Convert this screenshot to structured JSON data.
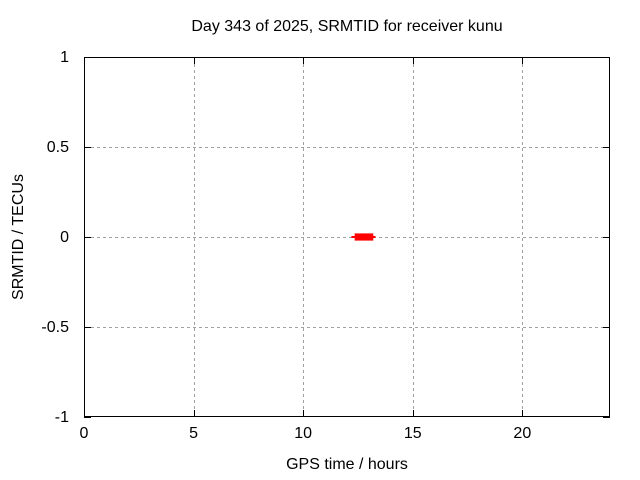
{
  "chart_data": {
    "type": "line",
    "title": "Day 343 of 2025, SRMTID for receiver kunu",
    "xlabel": "GPS time / hours",
    "ylabel": "SRMTID / TECUs",
    "xlim": [
      0,
      24
    ],
    "ylim": [
      -1,
      1
    ],
    "xticks": [
      {
        "value": 0,
        "label": "0"
      },
      {
        "value": 5,
        "label": "5"
      },
      {
        "value": 10,
        "label": "10"
      },
      {
        "value": 15,
        "label": "15"
      },
      {
        "value": 20,
        "label": "20"
      }
    ],
    "yticks": [
      {
        "value": 1,
        "label": "1"
      },
      {
        "value": 0.5,
        "label": "0.5"
      },
      {
        "value": 0,
        "label": "0"
      },
      {
        "value": -0.5,
        "label": "-0.5"
      },
      {
        "value": -1,
        "label": "-1"
      }
    ],
    "grid": true,
    "legend": "none",
    "colors": {
      "background": "#ffffff",
      "frame": "#000000",
      "grid": "#a0a0a0",
      "text": "#000000",
      "series": "#ff0000"
    },
    "series": [
      {
        "name": "SRMTID",
        "color": "#ff0000",
        "description": "short flat segment at zero TECUs near local noon",
        "line": {
          "x_start": 12.2,
          "x_end": 13.3,
          "y": 0.0
        },
        "band": {
          "x_start": 12.35,
          "x_end": 13.2,
          "y_low": -0.02,
          "y_high": 0.02
        }
      }
    ]
  }
}
